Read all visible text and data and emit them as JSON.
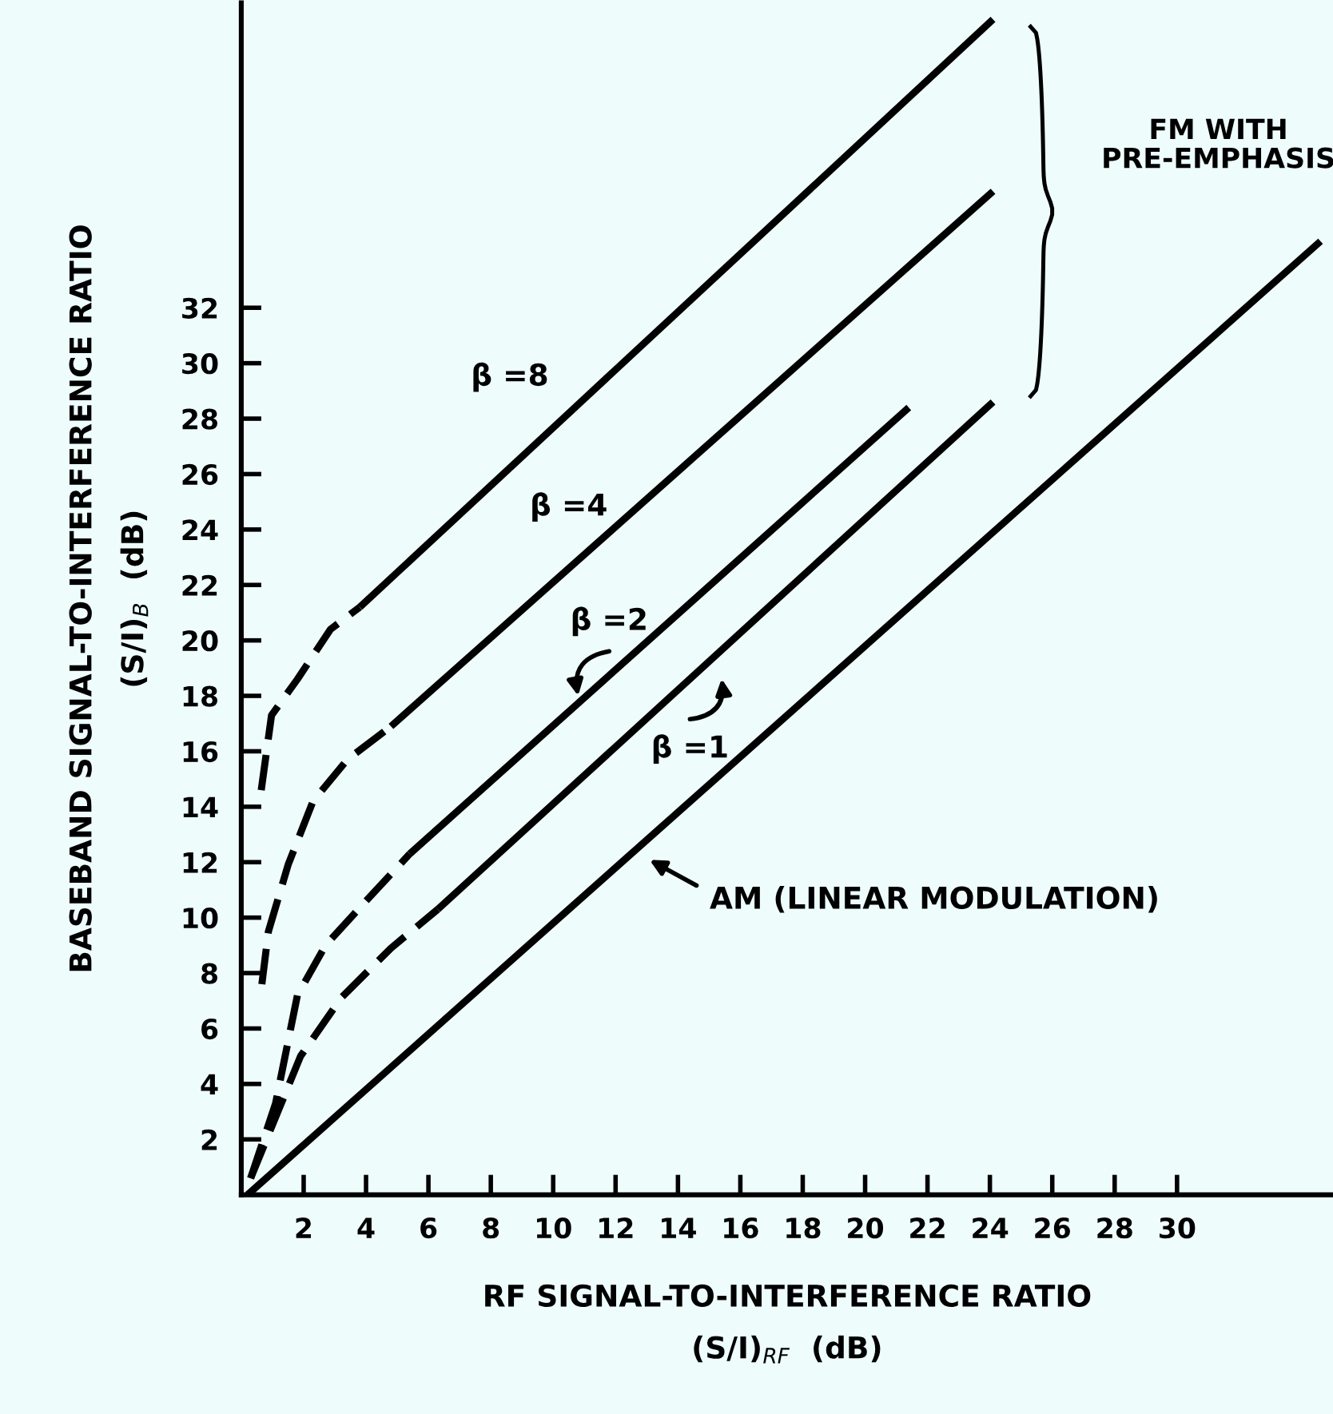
{
  "chart_data": {
    "type": "line",
    "xlabel": "RF SIGNAL-TO-INTERFERENCE RATIO\n(S/I)$_{RF}$  (dB)",
    "ylabel": "BASEBAND SIGNAL-TO-INTERFERENCE RATIO\n(S/I)$_{B}$  (dB)",
    "xlim": [
      0,
      35
    ],
    "ylim": [
      0,
      43
    ],
    "xticks": [
      2,
      4,
      6,
      8,
      10,
      12,
      14,
      16,
      18,
      20,
      22,
      24,
      26,
      28,
      30
    ],
    "yticks": [
      2,
      4,
      6,
      8,
      10,
      12,
      14,
      16,
      18,
      20,
      22,
      24,
      26,
      28,
      30,
      32
    ],
    "grid": false,
    "marker": "none",
    "series": [
      {
        "color": "#000000",
        "line_style": "dashed",
        "x": [
          0.64,
          0.97,
          1.8,
          2.86,
          3.8
        ],
        "values": [
          14.6,
          17.3,
          18.6,
          20.4,
          21.2
        ]
      },
      {
        "color": "#000000",
        "line_style": "solid",
        "x": [
          3.8,
          24.1
        ],
        "values": [
          21.2,
          42.4
        ]
      },
      {
        "color": "#000000",
        "line_style": "dashed",
        "x": [
          0.66,
          0.87,
          1.5,
          2.3,
          3.4,
          4.8
        ],
        "values": [
          7.6,
          9.5,
          11.9,
          14.2,
          15.7,
          16.9
        ]
      },
      {
        "color": "#000000",
        "line_style": "solid",
        "x": [
          4.8,
          24.1
        ],
        "values": [
          16.9,
          36.2
        ]
      },
      {
        "color": "#000000",
        "line_style": "dashed",
        "x": [
          0.3,
          1.1,
          1.8,
          2.7,
          4.0,
          5.4
        ],
        "values": [
          0.6,
          3.3,
          7.2,
          9.0,
          10.6,
          12.3
        ]
      },
      {
        "color": "#000000",
        "line_style": "solid",
        "x": [
          5.4,
          21.4
        ],
        "values": [
          12.3,
          28.4
        ]
      },
      {
        "color": "#000000",
        "line_style": "dashed",
        "x": [
          0.3,
          1.9,
          3.2,
          4.8,
          6.3
        ],
        "values": [
          0.6,
          5.0,
          7.1,
          8.9,
          10.3
        ]
      },
      {
        "color": "#000000",
        "line_style": "solid",
        "x": [
          6.3,
          24.1
        ],
        "values": [
          10.3,
          28.6
        ]
      },
      {
        "color": "#000000",
        "line_style": "solid",
        "x": [
          0.2,
          34.6
        ],
        "values": [
          0,
          34.4
        ]
      }
    ],
    "annotations": [
      "β =8",
      "β =4",
      {
        "text": "β =2",
        "x": 10.8,
        "y": 18.0
      },
      "β =1",
      "AM (LINEAR MODULATION)",
      "FM WITH\nPRE-EMPHASIS"
    ]
  }
}
